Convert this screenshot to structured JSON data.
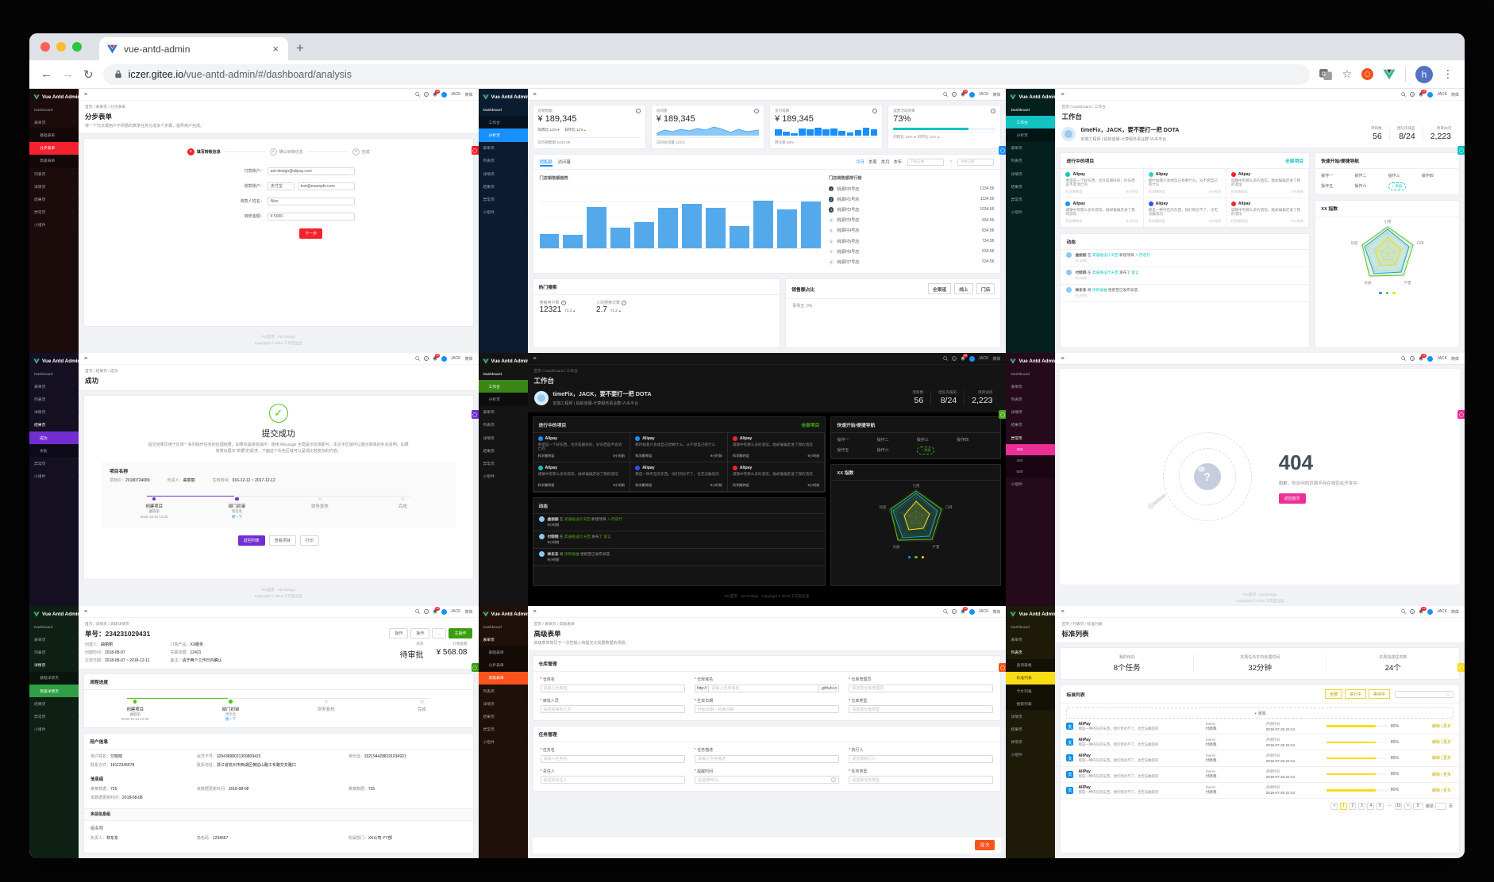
{
  "browser": {
    "tab_title": "vue-antd-admin",
    "url_host": "iczer.gitee.io",
    "url_path": "/vue-antd-admin/#/dashboard/analysis",
    "avatar_letter": "h"
  },
  "chrome": {
    "logo": "Vue Antd Admin",
    "badge": "12",
    "user": "JACK",
    "lang": "简体"
  },
  "menu": {
    "dashboard": "Dashboard",
    "workspace": "工作台",
    "analysis": "分析页",
    "form": "表单页",
    "basic_form": "基础表单",
    "step_form": "分步表单",
    "adv_form": "高级表单",
    "list": "列表页",
    "query_table": "查询表格",
    "std_list": "标准列表",
    "card_list": "卡片列表",
    "search_list": "搜索列表",
    "detail": "详情页",
    "basic_detail": "基础详情页",
    "adv_detail": "高级详情页",
    "result": "结果页",
    "success": "成功",
    "fail": "失败",
    "exception": "异常页",
    "e404": "404",
    "e403": "403",
    "e500": "500",
    "widget": "小组件"
  },
  "footer": {
    "link1": "Pro首页",
    "link2": "Ant Design",
    "copyright": "Copyright © 2018 工作室出品"
  },
  "themes": {
    "red": "#f5222d",
    "blue": "#1890ff",
    "cyan": "#13c2c2",
    "purple": "#722ed1",
    "dark_green": "#49aa19",
    "pink": "#eb2f96",
    "green": "#52c41a",
    "orange": "#fa541c",
    "yellow": "#fadb14"
  },
  "panels": {
    "step_form": {
      "breadcrumb": "首页 / 表单页 / 分步表单",
      "title": "分步表单",
      "desc": "将一个冗长或用户不熟悉的表单任务分成多个步骤，指导用户完成。",
      "steps": [
        {
          "n": "1",
          "label": "填写转账信息"
        },
        {
          "n": "2",
          "label": "确认转账信息"
        },
        {
          "n": "3",
          "label": "完成"
        }
      ],
      "fields": {
        "pay_label": "付款账户：",
        "pay_value": "ant-design@alipay.com",
        "recv_label": "收款账户：",
        "recv_type": "支付宝",
        "recv_value": "test@example.com",
        "name_label": "收款人姓名：",
        "name_value": "Alex",
        "amount_label": "转账金额：",
        "amount_value": "¥ 5000"
      },
      "next_btn": "下一步"
    },
    "analysis": {
      "cards": [
        {
          "title": "总销售额",
          "value": "¥ 189,345",
          "trend1": "同周比 12%",
          "trend2": "日环比 11%",
          "footer": "日均销售额 ¥234.56"
        },
        {
          "title": "访问量",
          "value": "¥ 189,345",
          "footer": "日均访问量 123,4"
        },
        {
          "title": "支付笔数",
          "value": "¥ 189,345",
          "footer": "转化率 60%"
        },
        {
          "title": "运营活动效果",
          "value": "73%",
          "trend1": "同周比 12%",
          "trend2": "日环比 11%"
        }
      ],
      "tabs": [
        "销售额",
        "访问量"
      ],
      "ranges": [
        "今日",
        "本周",
        "本月",
        "本年"
      ],
      "date_start": "开始日期",
      "date_sep": "~",
      "date_end": "结束日期",
      "chart_title": "门店销售额趋势",
      "bars": [
        22,
        20,
        64,
        32,
        40,
        62,
        68,
        62,
        34,
        74,
        60,
        72
      ],
      "mini_bars": [
        55,
        35,
        25,
        65,
        55,
        75,
        55,
        65,
        45,
        30,
        50,
        70,
        60
      ],
      "rank_title": "门店销售额排行榜",
      "ranks": [
        {
          "n": "1",
          "name": "桃源村0号店",
          "value": "1234.56"
        },
        {
          "n": "2",
          "name": "桃源村1号店",
          "value": "1134.56"
        },
        {
          "n": "3",
          "name": "桃源村2号店",
          "value": "1034.56"
        },
        {
          "n": "4",
          "name": "桃源村3号店",
          "value": "934.56"
        },
        {
          "n": "5",
          "name": "桃源村4号店",
          "value": "834.56"
        },
        {
          "n": "6",
          "name": "桃源村5号店",
          "value": "734.56"
        },
        {
          "n": "7",
          "name": "桃源村6号店",
          "value": "634.56"
        },
        {
          "n": "8",
          "name": "桃源村7号店",
          "value": "534.56"
        }
      ],
      "hot": {
        "title": "热门搜索",
        "m1_label": "搜索用户数",
        "m1": "12321",
        "m1_delta": "71.2",
        "m2_label": "人均搜索次数",
        "m2": "2.7",
        "m2_delta": "71.2"
      },
      "share": {
        "title": "销售额占比",
        "filters": [
          "全渠道",
          "线上",
          "门店"
        ],
        "legend": "事例五: 9%"
      }
    },
    "workspace": {
      "breadcrumb": "首页 / Dashboard / 工作台",
      "title": "工作台",
      "greeting": "timeFix，JACK，要不要打一把 DOTA",
      "subtitle": "前端工程师 | 蚂蚁金服-计算服务事业群-VUE平台",
      "stats": [
        {
          "label": "项目数",
          "value": "56"
        },
        {
          "label": "团队内排名",
          "value": "8/24"
        },
        {
          "label": "项目访问",
          "value": "2,223"
        }
      ],
      "projects_title": "进行中的项目",
      "all_link": "全部项目",
      "project_name": "Alipay",
      "team": "科学搬砖组",
      "time": "9小时前",
      "descs": [
        "希望是一个好东西，也许是最好的，好东西是不会消亡的",
        "那时候我只会想自己想要什么，从不想自己有什么",
        "城镇中有那么多的酒馆，她却偏偏走进了我的酒馆",
        "城镇中有那么多的酒馆，她却偏偏走进了我的酒馆",
        "那是一种内在的东西，他们到达不了，也无法触及的",
        "城镇中有那么多的酒馆，她却偏偏走进了我的酒馆"
      ],
      "nav_title": "快速开始/便捷导航",
      "ops": [
        "操作一",
        "操作二",
        "操作三",
        "操作四",
        "操作五",
        "操作六"
      ],
      "add_btn": "+ 添加",
      "radar_title": "XX 指数",
      "radar_labels": [
        "引用",
        "口碑",
        "产量",
        "贡献",
        "热度"
      ],
      "feed_title": "动态",
      "feed": [
        {
          "user": "曲丽丽",
          "mid": "在",
          "group": "高逼格设计天团",
          "action": "新建项目",
          "target": "八月迭代",
          "time": "9小时前"
        },
        {
          "user": "付晓晓",
          "mid": "在",
          "group": "高逼格设计天团",
          "action": "发布了",
          "target": "留言",
          "time": "9小时前"
        },
        {
          "user": "林东东",
          "mid": "将",
          "group": "项目进展",
          "action": "更新至已发布状态",
          "target": "",
          "time": "9小时前"
        }
      ]
    },
    "success": {
      "breadcrumb": "首页 / 结果页 / 成功",
      "page_title": "成功",
      "result_title": "提交成功",
      "desc": "提交结果页用于反馈一系列操作任务的处理结果，如果仅是简单操作，使用 Message 全局提示反馈即可。本文字区域可以展示简单的补充说明，如果有类似展示“单据”的需求，下面这个灰色区域可以呈现比较复杂的内容。",
      "box_title": "项目名称",
      "meta": [
        {
          "k": "项目ID：",
          "v": "20180724089"
        },
        {
          "k": "负责人：",
          "v": "曲丽丽"
        },
        {
          "k": "生效时间：",
          "v": "016-12-12 ~ 2017-12-12"
        }
      ],
      "flow": [
        {
          "label": "创建项目",
          "sub1": "曲丽丽",
          "sub2": "2016-12-12 12:32"
        },
        {
          "label": "部门初审",
          "sub1": "周毛毛",
          "sub2": "催一下"
        },
        {
          "label": "财务复核",
          "sub1": "",
          "sub2": ""
        },
        {
          "label": "完成",
          "sub1": "",
          "sub2": ""
        }
      ],
      "buttons": [
        "返回列表",
        "查看项目",
        "打印"
      ]
    },
    "not_found": {
      "code": "404",
      "message": "抱歉，你访问的页面不存在或仍在开发中",
      "back_btn": "返回首页"
    },
    "detail": {
      "breadcrumb": "首页 / 详情页 / 高级详情页",
      "title": "单号：234231029431",
      "actions": [
        "操作",
        "操作",
        "..."
      ],
      "primary_action": "主操作",
      "meta": [
        {
          "k": "创建人：",
          "v": "曲丽丽"
        },
        {
          "k": "订购产品：",
          "v": "XX服务"
        },
        {
          "k": "创建时间：",
          "v": "2018-08-07"
        },
        {
          "k": "关联单据：",
          "v": "12421"
        },
        {
          "k": "生效日期：",
          "v": "2018-08-07 ~ 2018-12-11"
        },
        {
          "k": "备注：",
          "v": "请于两个工作日内确认"
        }
      ],
      "status_label": "状态",
      "status_value": "待审批",
      "amount_label": "订单金额",
      "amount_value": "¥ 568.08",
      "flow_title": "流程进度",
      "user_title": "用户信息",
      "user_info": [
        {
          "k": "用户姓名：",
          "v": "付晓晓"
        },
        {
          "k": "会员卡号：",
          "v": "32943898021309809423"
        },
        {
          "k": "身份证：",
          "v": "3321944288191034921"
        },
        {
          "k": "联系方式：",
          "v": "18112345678"
        },
        {
          "k": "联系地址：",
          "v": "浙江省杭州市西湖区黄姑山路工专路交叉路口"
        }
      ],
      "group_title": "信息组",
      "group_info": [
        {
          "k": "某某数据：",
          "v": "725"
        },
        {
          "k": "该数据更新时间：",
          "v": "2018-08-08"
        },
        {
          "k": "某某数据：",
          "v": "725"
        },
        {
          "k": "该数据更新时间：",
          "v": "2018-08-08"
        }
      ],
      "multi_title": "多层信息组",
      "multi_group": "组名称",
      "multi_info": [
        {
          "k": "负责人：",
          "v": "林东东"
        },
        {
          "k": "角色码：",
          "v": "1234567"
        },
        {
          "k": "所属部门：",
          "v": "XX公司-YY部"
        }
      ]
    },
    "adv_form": {
      "breadcrumb": "首页 / 表单页 / 高级表单",
      "title": "高级表单",
      "desc": "高级表单常见于一次性输入和提交大批量数据的场景。",
      "sec1_title": "仓库管理",
      "sec1": [
        {
          "label": "仓库名",
          "ph": "请输入仓库名"
        },
        {
          "label": "仓库域名",
          "pre": "http://",
          "ph": "请输入仓库域名",
          "suf": ".github.io"
        },
        {
          "label": "仓库管理员",
          "ph": "请选择仓库管理员"
        },
        {
          "label": "审批人员",
          "ph": "请选择审批人员"
        },
        {
          "label": "生效日期",
          "ph": "开始日期  ~  结束日期"
        },
        {
          "label": "仓库类型",
          "ph": "请选择仓库类型"
        }
      ],
      "sec2_title": "任务管理",
      "sec2": [
        {
          "label": "任务名",
          "ph": "请输入任务名"
        },
        {
          "label": "任务描述",
          "ph": "请输入任务描述"
        },
        {
          "label": "执行人",
          "ph": "请选择执行人"
        },
        {
          "label": "责任人",
          "ph": "请选择责任人"
        },
        {
          "label": "提醒时间",
          "ph": "请选择时间"
        },
        {
          "label": "任务类型",
          "ph": "请选择任务类型"
        }
      ],
      "submit": "提 交"
    },
    "std_list": {
      "breadcrumb": "首页 / 列表页 / 标准列表",
      "title": "标准列表",
      "stats": [
        {
          "label": "我的待办",
          "value": "8个任务"
        },
        {
          "label": "本周任务平均处理时间",
          "value": "32分钟"
        },
        {
          "label": "本周完成任务数",
          "value": "24个"
        }
      ],
      "card_title": "标准列表",
      "filters": [
        "全部",
        "进行中",
        "等待中"
      ],
      "add_btn": "+ 添加",
      "row": {
        "name": "AliPay",
        "icon_glyph": "支",
        "desc": "那是一种内在的东西，他们到达不了，也无法触及的",
        "owner_label": "Owner",
        "owner": "付晓晓",
        "start_label": "开始时间",
        "start": "2018-07-26 22:44",
        "pct": "80%",
        "edit": "编辑",
        "more": "更多"
      },
      "pager": {
        "prev": "<",
        "pages": [
          "1",
          "2",
          "3",
          "4",
          "5",
          "···",
          "10"
        ],
        "next": ">",
        "size": "5",
        "jump": "跳至",
        "page_unit": "页"
      }
    }
  }
}
